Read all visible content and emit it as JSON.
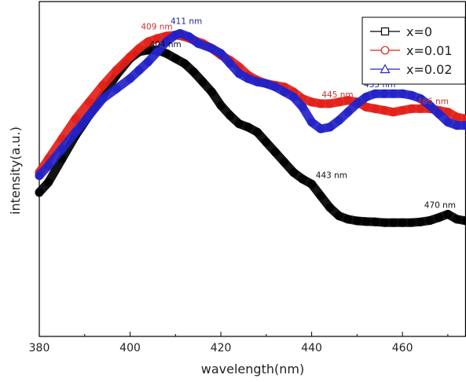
{
  "chart_data": {
    "type": "line",
    "xlabel": "wavelength(nm)",
    "ylabel": "intensity(a.u.)",
    "xlim": [
      380,
      474
    ],
    "ylim": [
      0,
      100
    ],
    "xticks": [
      380,
      400,
      420,
      440,
      460
    ],
    "xtick_labels": [
      "380",
      "400",
      "420",
      "440",
      "460"
    ],
    "grid": false,
    "legend_position": "top-right",
    "series": [
      {
        "name": "x=0",
        "color": "#000000",
        "marker": "square",
        "x": [
          380,
          382,
          385,
          388,
          391,
          394,
          397,
          400,
          402,
          404,
          406,
          408,
          410,
          412,
          414,
          416,
          418,
          420,
          422,
          424,
          426,
          428,
          430,
          432,
          434,
          436,
          438,
          440,
          442,
          444,
          446,
          448,
          450,
          452,
          454,
          456,
          458,
          460,
          462,
          464,
          466,
          468,
          470,
          472,
          474
        ],
        "y": [
          43,
          46,
          53,
          60,
          66,
          72,
          78,
          83,
          85,
          85.5,
          85.5,
          84.5,
          83,
          81.5,
          79,
          76,
          73,
          69,
          66,
          63.5,
          62.5,
          61,
          58,
          55,
          52,
          49,
          47,
          45.5,
          42,
          38.5,
          36,
          35,
          34.5,
          34.3,
          34.2,
          34,
          34,
          34,
          34,
          34.2,
          34.6,
          35.5,
          36.5,
          35,
          34.5
        ]
      },
      {
        "name": "x=0.01",
        "color": "#e32119",
        "marker": "circle",
        "x": [
          380,
          382,
          385,
          388,
          391,
          394,
          397,
          400,
          402,
          404,
          406,
          408,
          410,
          412,
          414,
          416,
          418,
          420,
          422,
          424,
          426,
          428,
          430,
          432,
          434,
          436,
          438,
          440,
          442,
          444,
          446,
          448,
          450,
          452,
          454,
          456,
          458,
          460,
          462,
          464,
          466,
          468,
          470,
          472,
          474
        ],
        "y": [
          49,
          53,
          59,
          65,
          70,
          75,
          79.5,
          83.5,
          86,
          88,
          89,
          89.7,
          90,
          89.5,
          88.5,
          87.5,
          86,
          84,
          82.5,
          80.5,
          78,
          76.5,
          75.5,
          75,
          74.5,
          73,
          71,
          70,
          69.5,
          69.5,
          70,
          70.5,
          70,
          68.5,
          68,
          67.5,
          67,
          67.5,
          68,
          68,
          68,
          67.5,
          67,
          65.5,
          65
        ]
      },
      {
        "name": "x=0.02",
        "color": "#2323c8",
        "marker": "triangle",
        "x": [
          380,
          382,
          385,
          388,
          391,
          394,
          397,
          400,
          402,
          404,
          406,
          408,
          410,
          411,
          413,
          415,
          418,
          420,
          422,
          424,
          426,
          428,
          430,
          432,
          434,
          436,
          438,
          440,
          442,
          444,
          446,
          448,
          450,
          452,
          454,
          456,
          458,
          460,
          462,
          464,
          466,
          468,
          470,
          472,
          474
        ],
        "y": [
          48,
          51,
          56,
          61,
          66,
          71,
          74,
          77,
          79.5,
          82,
          85,
          88,
          90,
          90.5,
          89.5,
          87.5,
          86,
          84.5,
          81.5,
          78.5,
          77,
          76,
          75.5,
          74.5,
          73,
          71.5,
          68.5,
          64,
          62,
          62.5,
          64.5,
          67,
          69.5,
          71.5,
          72.5,
          72.5,
          72.5,
          72.5,
          72,
          71,
          69,
          66.5,
          64,
          63,
          63
        ]
      }
    ],
    "annotations": [
      {
        "text": "409 nm",
        "x": 409,
        "y": 90,
        "color": "#c8302c"
      },
      {
        "text": "411 nm",
        "x": 411,
        "y": 90.5,
        "color": "#2323a0"
      },
      {
        "text": "404 nm",
        "x": 404,
        "y": 85.5,
        "color": "#111111"
      },
      {
        "text": "445 nm",
        "x": 445,
        "y": 69.5,
        "color": "#c8302c"
      },
      {
        "text": "455 nm",
        "x": 455,
        "y": 72.5,
        "color": "#2323a0"
      },
      {
        "text": "466 nm",
        "x": 466,
        "y": 68,
        "color": "#c8302c"
      },
      {
        "text": "443 nm",
        "x": 443,
        "y": 45,
        "color": "#111111"
      },
      {
        "text": "470 nm",
        "x": 470,
        "y": 36.5,
        "color": "#111111"
      }
    ]
  }
}
